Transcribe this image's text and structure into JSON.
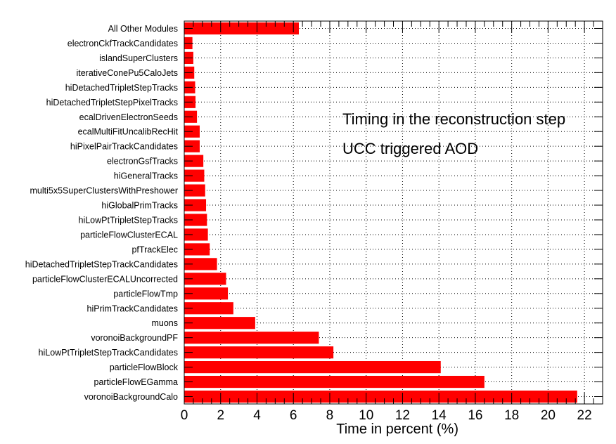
{
  "chart_data": {
    "type": "bar",
    "orientation": "horizontal",
    "xlabel": "Time in percent (%)",
    "xlim": [
      0,
      23
    ],
    "xticks": [
      0,
      2,
      4,
      6,
      8,
      10,
      12,
      14,
      16,
      18,
      20,
      22
    ],
    "grid": true,
    "bar_color": "#ff0000",
    "annotations": [
      "Timing in the reconstruction step",
      "UCC triggered AOD"
    ],
    "categories": [
      "All Other Modules",
      "electronCkfTrackCandidates",
      "islandSuperClusters",
      "iterativeConePu5CaloJets",
      "hiDetachedTripletStepTracks",
      "hiDetachedTripletStepPixelTracks",
      "ecalDrivenElectronSeeds",
      "ecalMultiFitUncalibRecHit",
      "hiPixelPairTrackCandidates",
      "electronGsfTracks",
      "hiGeneralTracks",
      "multi5x5SuperClustersWithPreshower",
      "hiGlobalPrimTracks",
      "hiLowPtTripletStepTracks",
      "particleFlowClusterECAL",
      "pfTrackElec",
      "hiDetachedTripletStepTrackCandidates",
      "particleFlowClusterECALUncorrected",
      "particleFlowTmp",
      "hiPrimTrackCandidates",
      "muons",
      "voronoiBackgroundPF",
      "hiLowPtTripletStepTrackCandidates",
      "particleFlowBlock",
      "particleFlowEGamma",
      "voronoiBackgroundCalo"
    ],
    "values": [
      6.3,
      0.45,
      0.5,
      0.55,
      0.6,
      0.62,
      0.7,
      0.85,
      0.85,
      1.05,
      1.1,
      1.15,
      1.2,
      1.25,
      1.3,
      1.4,
      1.8,
      2.3,
      2.4,
      2.7,
      3.9,
      7.4,
      8.2,
      14.1,
      16.5,
      21.6
    ]
  }
}
